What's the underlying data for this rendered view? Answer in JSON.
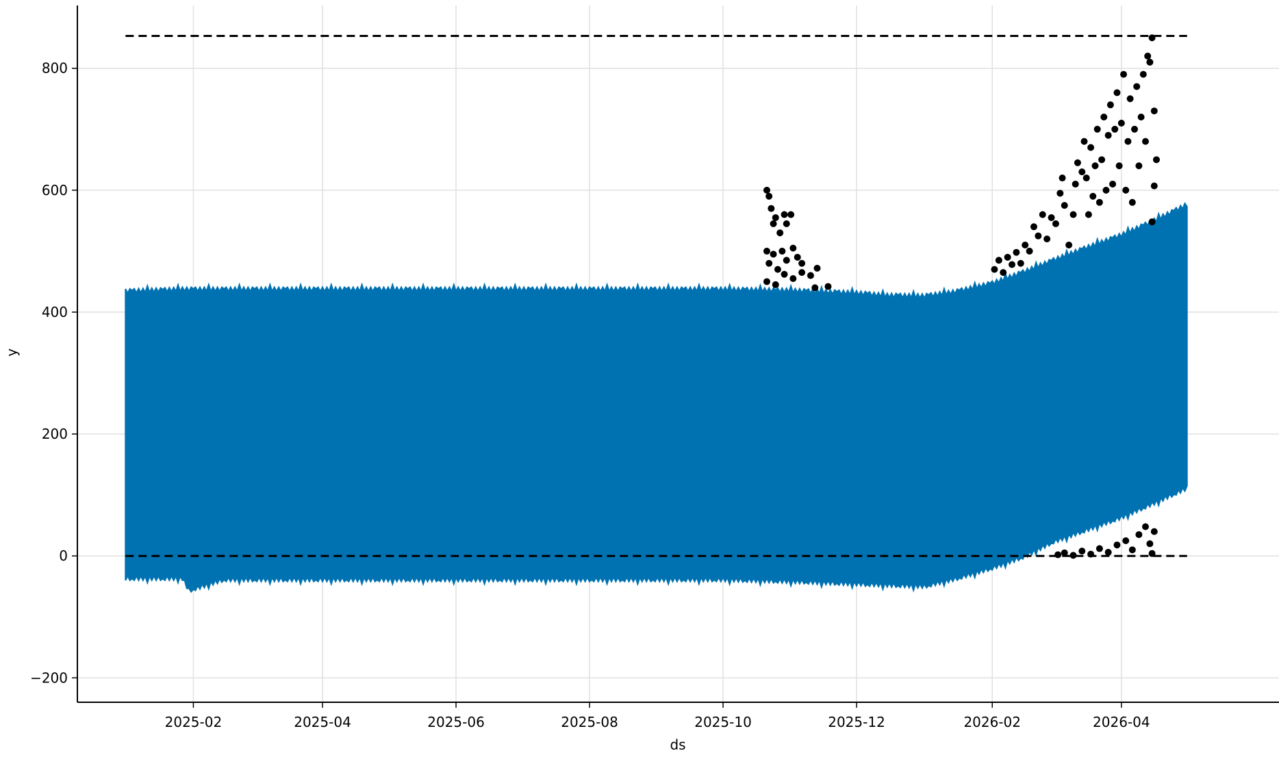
{
  "chart_data": {
    "type": "line",
    "title": "",
    "xlabel": "ds",
    "ylabel": "y",
    "grid": true,
    "legend": "none",
    "x_range": [
      "2024-12-10",
      "2026-06-12"
    ],
    "ylim": [
      -240,
      903
    ],
    "x_ticks": [
      "2025-02",
      "2025-04",
      "2025-06",
      "2025-08",
      "2025-10",
      "2025-12",
      "2026-02",
      "2026-04"
    ],
    "y_ticks": [
      -200,
      0,
      200,
      400,
      600,
      800
    ],
    "colors": {
      "forecast_band": "#0072b2",
      "observations": "#000000",
      "cap_floor": "#000000",
      "grid": "#e0e0e0"
    },
    "forecast_band": {
      "name": "",
      "x": [
        "2025-01-01",
        "2025-01-27",
        "2025-01-30",
        "2025-02-15",
        "2025-04-01",
        "2025-06-01",
        "2025-08-01",
        "2025-10-01",
        "2025-11-01",
        "2025-12-01",
        "2025-12-15",
        "2026-01-01",
        "2026-01-15",
        "2026-02-01",
        "2026-02-15",
        "2026-03-01",
        "2026-03-15",
        "2026-04-01",
        "2026-04-15",
        "2026-05-01"
      ],
      "upper": [
        433,
        436,
        436,
        436,
        436,
        436,
        436,
        436,
        434,
        430,
        426,
        425,
        432,
        446,
        464,
        484,
        503,
        525,
        547,
        575
      ],
      "lower": [
        -35,
        -35,
        -55,
        -37,
        -37,
        -37,
        -37,
        -37,
        -40,
        -44,
        -46,
        -48,
        -36,
        -18,
        0,
        25,
        43,
        65,
        87,
        113
      ]
    },
    "cap": {
      "value": 853,
      "x": [
        "2025-01-01",
        "2026-05-01"
      ]
    },
    "floor": {
      "value": 0,
      "x": [
        "2025-01-01",
        "2026-05-01"
      ]
    },
    "observations": [
      {
        "x": "2025-10-21",
        "y": 600
      },
      {
        "x": "2025-10-22",
        "y": 590
      },
      {
        "x": "2025-10-23",
        "y": 570
      },
      {
        "x": "2025-10-24",
        "y": 545
      },
      {
        "x": "2025-10-25",
        "y": 555
      },
      {
        "x": "2025-10-27",
        "y": 530
      },
      {
        "x": "2025-10-29",
        "y": 560
      },
      {
        "x": "2025-10-30",
        "y": 545
      },
      {
        "x": "2025-11-01",
        "y": 560
      },
      {
        "x": "2025-10-21",
        "y": 500
      },
      {
        "x": "2025-10-22",
        "y": 480
      },
      {
        "x": "2025-10-24",
        "y": 495
      },
      {
        "x": "2025-10-26",
        "y": 470
      },
      {
        "x": "2025-10-28",
        "y": 500
      },
      {
        "x": "2025-10-30",
        "y": 485
      },
      {
        "x": "2025-11-02",
        "y": 505
      },
      {
        "x": "2025-11-04",
        "y": 490
      },
      {
        "x": "2025-11-06",
        "y": 480
      },
      {
        "x": "2025-10-21",
        "y": 450
      },
      {
        "x": "2025-10-25",
        "y": 445
      },
      {
        "x": "2025-10-29",
        "y": 462
      },
      {
        "x": "2025-11-02",
        "y": 455
      },
      {
        "x": "2025-11-06",
        "y": 465
      },
      {
        "x": "2025-11-10",
        "y": 460
      },
      {
        "x": "2025-11-13",
        "y": 472
      },
      {
        "x": "2025-11-12",
        "y": 440
      },
      {
        "x": "2025-11-18",
        "y": 442
      },
      {
        "x": "2026-02-02",
        "y": 470
      },
      {
        "x": "2026-02-04",
        "y": 485
      },
      {
        "x": "2026-02-06",
        "y": 465
      },
      {
        "x": "2026-02-08",
        "y": 490
      },
      {
        "x": "2026-02-10",
        "y": 478
      },
      {
        "x": "2026-02-12",
        "y": 498
      },
      {
        "x": "2026-02-14",
        "y": 480
      },
      {
        "x": "2026-02-16",
        "y": 510
      },
      {
        "x": "2026-02-18",
        "y": 500
      },
      {
        "x": "2026-02-20",
        "y": 540
      },
      {
        "x": "2026-02-22",
        "y": 525
      },
      {
        "x": "2026-02-24",
        "y": 560
      },
      {
        "x": "2026-02-26",
        "y": 520
      },
      {
        "x": "2026-02-28",
        "y": 555
      },
      {
        "x": "2026-03-02",
        "y": 545
      },
      {
        "x": "2026-03-04",
        "y": 595
      },
      {
        "x": "2026-03-05",
        "y": 620
      },
      {
        "x": "2026-03-06",
        "y": 575
      },
      {
        "x": "2026-03-08",
        "y": 510
      },
      {
        "x": "2026-03-10",
        "y": 560
      },
      {
        "x": "2026-03-11",
        "y": 610
      },
      {
        "x": "2026-03-12",
        "y": 645
      },
      {
        "x": "2026-03-14",
        "y": 630
      },
      {
        "x": "2026-03-15",
        "y": 680
      },
      {
        "x": "2026-03-16",
        "y": 620
      },
      {
        "x": "2026-03-17",
        "y": 560
      },
      {
        "x": "2026-03-18",
        "y": 670
      },
      {
        "x": "2026-03-19",
        "y": 590
      },
      {
        "x": "2026-03-20",
        "y": 640
      },
      {
        "x": "2026-03-21",
        "y": 700
      },
      {
        "x": "2026-03-22",
        "y": 580
      },
      {
        "x": "2026-03-23",
        "y": 650
      },
      {
        "x": "2026-03-24",
        "y": 720
      },
      {
        "x": "2026-03-25",
        "y": 600
      },
      {
        "x": "2026-03-26",
        "y": 690
      },
      {
        "x": "2026-03-27",
        "y": 740
      },
      {
        "x": "2026-03-28",
        "y": 610
      },
      {
        "x": "2026-03-29",
        "y": 700
      },
      {
        "x": "2026-03-30",
        "y": 760
      },
      {
        "x": "2026-03-31",
        "y": 640
      },
      {
        "x": "2026-04-01",
        "y": 710
      },
      {
        "x": "2026-04-02",
        "y": 790
      },
      {
        "x": "2026-04-03",
        "y": 600
      },
      {
        "x": "2026-04-04",
        "y": 680
      },
      {
        "x": "2026-04-05",
        "y": 750
      },
      {
        "x": "2026-04-06",
        "y": 580
      },
      {
        "x": "2026-04-07",
        "y": 700
      },
      {
        "x": "2026-04-08",
        "y": 770
      },
      {
        "x": "2026-04-09",
        "y": 640
      },
      {
        "x": "2026-04-10",
        "y": 720
      },
      {
        "x": "2026-04-11",
        "y": 790
      },
      {
        "x": "2026-04-12",
        "y": 680
      },
      {
        "x": "2026-04-13",
        "y": 820
      },
      {
        "x": "2026-04-14",
        "y": 810
      },
      {
        "x": "2026-04-15",
        "y": 850
      },
      {
        "x": "2026-04-16",
        "y": 730
      },
      {
        "x": "2026-04-17",
        "y": 650
      },
      {
        "x": "2026-04-16",
        "y": 607
      },
      {
        "x": "2026-04-15",
        "y": 548
      },
      {
        "x": "2026-03-03",
        "y": 2
      },
      {
        "x": "2026-03-06",
        "y": 5
      },
      {
        "x": "2026-03-10",
        "y": 1
      },
      {
        "x": "2026-03-14",
        "y": 8
      },
      {
        "x": "2026-03-18",
        "y": 3
      },
      {
        "x": "2026-03-22",
        "y": 12
      },
      {
        "x": "2026-03-26",
        "y": 6
      },
      {
        "x": "2026-03-30",
        "y": 18
      },
      {
        "x": "2026-04-03",
        "y": 25
      },
      {
        "x": "2026-04-06",
        "y": 10
      },
      {
        "x": "2026-04-09",
        "y": 35
      },
      {
        "x": "2026-04-12",
        "y": 48
      },
      {
        "x": "2026-04-14",
        "y": 20
      },
      {
        "x": "2026-04-15",
        "y": 4
      },
      {
        "x": "2026-04-16",
        "y": 40
      }
    ]
  }
}
